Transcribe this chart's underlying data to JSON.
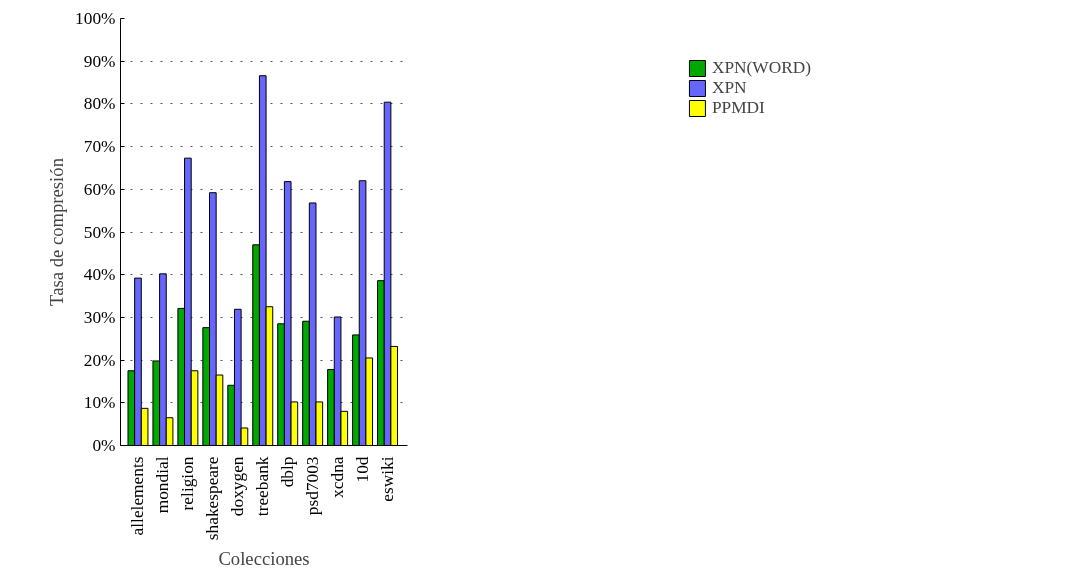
{
  "chart_data": {
    "type": "bar",
    "xlabel": "Colecciones",
    "ylabel": "Tasa de compresión",
    "categories": [
      "allelements",
      "mondial",
      "religion",
      "shakespeare",
      "doxygen",
      "treebank",
      "dblp",
      "psd7003",
      "xcdna",
      "10d",
      "eswiki"
    ],
    "series": [
      {
        "name": "XPN(WORD)",
        "color": "#00a800",
        "values": [
          17.5,
          19.8,
          32.1,
          27.6,
          14.1,
          47.0,
          28.5,
          29.1,
          17.8,
          25.9,
          38.6
        ]
      },
      {
        "name": "XPN",
        "color": "#6666ff",
        "values": [
          39.2,
          40.2,
          67.3,
          59.2,
          31.9,
          86.6,
          61.8,
          56.8,
          30.1,
          62.0,
          80.4
        ]
      },
      {
        "name": "PPMDI",
        "color": "#ffff00",
        "values": [
          8.7,
          6.5,
          17.5,
          16.5,
          4.1,
          32.5,
          10.2,
          10.2,
          8.0,
          20.5,
          23.2
        ]
      }
    ],
    "ylim": [
      0,
      100
    ],
    "yticks": [
      {
        "value": 0,
        "label": "0%"
      },
      {
        "value": 10,
        "label": "10%"
      },
      {
        "value": 20,
        "label": "20%"
      },
      {
        "value": 30,
        "label": "30%"
      },
      {
        "value": 40,
        "label": "40%"
      },
      {
        "value": 50,
        "label": "50%"
      },
      {
        "value": 60,
        "label": "60%"
      },
      {
        "value": 70,
        "label": "70%"
      },
      {
        "value": 80,
        "label": "80%"
      },
      {
        "value": 90,
        "label": "90%"
      },
      {
        "value": 100,
        "label": "100%"
      }
    ],
    "grid": "y",
    "legend": "top right"
  }
}
